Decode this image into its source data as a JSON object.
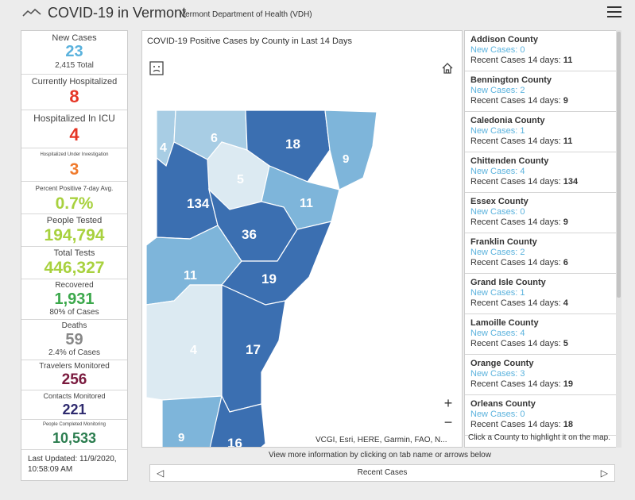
{
  "header": {
    "title": "COVID-19 in Vermont",
    "subtitle": "Vermont Department of Health (VDH)"
  },
  "colors": {
    "new_cases": "#5ab2dd",
    "hospitalized": "#e53525",
    "investigation": "#f07a2c",
    "percent": "#a8d13e",
    "recovered": "#3ba84b",
    "deaths": "#888888",
    "travelers": "#7a1a3e",
    "contacts": "#2e2a6e",
    "completed": "#2b7d4f"
  },
  "stats": {
    "new_cases": {
      "label": "New Cases",
      "value": "23",
      "sub": "2,415 Total"
    },
    "hospitalized": {
      "label": "Currently Hospitalized",
      "value": "8"
    },
    "icu": {
      "label": "Hospitalized In ICU",
      "value": "4"
    },
    "investigation": {
      "label": "Hospitalized Under Investigation",
      "value": "3"
    },
    "percent_positive": {
      "label": "Percent Positive 7-day Avg.",
      "value": "0.7%"
    },
    "people_tested": {
      "label": "People Tested",
      "value": "194,794"
    },
    "total_tests": {
      "label": "Total Tests",
      "value": "446,327"
    },
    "recovered": {
      "label": "Recovered",
      "value": "1,931",
      "sub": "80% of Cases"
    },
    "deaths": {
      "label": "Deaths",
      "value": "59",
      "sub": "2.4% of Cases"
    },
    "travelers": {
      "label": "Travelers Monitored",
      "value": "256"
    },
    "contacts": {
      "label": "Contacts Monitored",
      "value": "221"
    },
    "completed": {
      "label": "People Completed Monitoring",
      "value": "10,533"
    },
    "updated_line1": "Last Updated: 11/9/2020,",
    "updated_line2": "10:58:09 AM"
  },
  "map": {
    "title": "COVID-19 Positive Cases by County in Last 14 Days",
    "attribution": "VCGI, Esri, HERE, Garmin, FAO, N...",
    "zoom_in": "+",
    "zoom_out": "−",
    "shade_scale": [
      "#dceaf2",
      "#a8cde4",
      "#7eb5da",
      "#4a8ac4",
      "#3b6fb1"
    ],
    "counties": [
      {
        "value": "4",
        "shade": 1
      },
      {
        "value": "6",
        "shade": 1
      },
      {
        "value": "18",
        "shade": 4
      },
      {
        "value": "9",
        "shade": 2
      },
      {
        "value": "5",
        "shade": 0
      },
      {
        "value": "134",
        "shade": 4
      },
      {
        "value": "11",
        "shade": 2
      },
      {
        "value": "36",
        "shade": 4
      },
      {
        "value": "11",
        "shade": 2
      },
      {
        "value": "19",
        "shade": 4
      },
      {
        "value": "4",
        "shade": 0
      },
      {
        "value": "17",
        "shade": 4
      },
      {
        "value": "9",
        "shade": 2
      },
      {
        "value": "16",
        "shade": 4
      }
    ]
  },
  "county_list": {
    "new_prefix": "New Cases: ",
    "recent_prefix": "Recent Cases 14 days: ",
    "items": [
      {
        "name": "Addison County",
        "new": "0",
        "recent": "11"
      },
      {
        "name": "Bennington County",
        "new": "2",
        "recent": "9"
      },
      {
        "name": "Caledonia County",
        "new": "1",
        "recent": "11"
      },
      {
        "name": "Chittenden County",
        "new": "4",
        "recent": "134"
      },
      {
        "name": "Essex County",
        "new": "0",
        "recent": "9"
      },
      {
        "name": "Franklin County",
        "new": "2",
        "recent": "6"
      },
      {
        "name": "Grand Isle County",
        "new": "1",
        "recent": "4"
      },
      {
        "name": "Lamoille County",
        "new": "4",
        "recent": "5"
      },
      {
        "name": "Orange County",
        "new": "3",
        "recent": "19"
      },
      {
        "name": "Orleans County",
        "new": "0",
        "recent": "18"
      }
    ],
    "hint": "Click a County to highlight it on the map."
  },
  "footer": {
    "more_info": "View more information by clicking on tab name or arrows below",
    "tab_name": "Recent Cases",
    "prev_arrow": "◁",
    "next_arrow": "▷"
  }
}
